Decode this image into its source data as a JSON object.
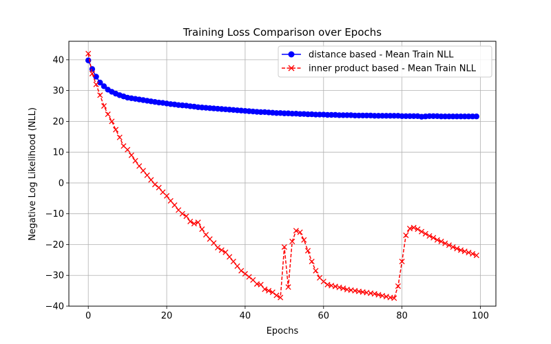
{
  "chart_data": {
    "type": "line",
    "title": "Training Loss Comparison over Epochs",
    "xlabel": "Epochs",
    "ylabel": "Negative Log Likelihood (NLL)",
    "xlim": [
      -4.95,
      103.95
    ],
    "ylim": [
      -40,
      46
    ],
    "xticks": [
      0,
      20,
      40,
      60,
      80,
      100
    ],
    "xtick_labels": [
      "0",
      "20",
      "40",
      "60",
      "80",
      "100"
    ],
    "yticks": [
      -40,
      -30,
      -20,
      -10,
      0,
      10,
      20,
      30,
      40
    ],
    "ytick_labels": [
      "−40",
      "−30",
      "−20",
      "−10",
      "0",
      "10",
      "20",
      "30",
      "40"
    ],
    "grid": true,
    "legend_position": "upper-right",
    "series": [
      {
        "name": "distance based - Mean Train NLL",
        "color": "#0000ff",
        "marker": "circle",
        "line_style": "solid",
        "x": [
          0,
          1,
          2,
          3,
          4,
          5,
          6,
          7,
          8,
          9,
          10,
          11,
          12,
          13,
          14,
          15,
          16,
          17,
          18,
          19,
          20,
          21,
          22,
          23,
          24,
          25,
          26,
          27,
          28,
          29,
          30,
          31,
          32,
          33,
          34,
          35,
          36,
          37,
          38,
          39,
          40,
          41,
          42,
          43,
          44,
          45,
          46,
          47,
          48,
          49,
          50,
          51,
          52,
          53,
          54,
          55,
          56,
          57,
          58,
          59,
          60,
          61,
          62,
          63,
          64,
          65,
          66,
          67,
          68,
          69,
          70,
          71,
          72,
          73,
          74,
          75,
          76,
          77,
          78,
          79,
          80,
          81,
          82,
          83,
          84,
          85,
          86,
          87,
          88,
          89,
          90,
          91,
          92,
          93,
          94,
          95,
          96,
          97,
          98,
          99
        ],
        "values": [
          39.8,
          37.0,
          34.5,
          32.6,
          31.4,
          30.3,
          29.6,
          29.0,
          28.5,
          28.1,
          27.7,
          27.5,
          27.3,
          27.1,
          26.9,
          26.7,
          26.5,
          26.3,
          26.1,
          26.0,
          25.8,
          25.6,
          25.5,
          25.3,
          25.2,
          25.1,
          24.9,
          24.8,
          24.6,
          24.5,
          24.4,
          24.3,
          24.2,
          24.1,
          24.0,
          23.9,
          23.8,
          23.7,
          23.6,
          23.5,
          23.4,
          23.3,
          23.2,
          23.1,
          23.0,
          23.0,
          22.9,
          22.8,
          22.7,
          22.7,
          22.6,
          22.6,
          22.5,
          22.5,
          22.4,
          22.4,
          22.3,
          22.3,
          22.2,
          22.2,
          22.2,
          22.1,
          22.1,
          22.1,
          22.0,
          22.0,
          22.0,
          22.0,
          21.9,
          21.9,
          21.9,
          21.9,
          21.9,
          21.8,
          21.8,
          21.8,
          21.8,
          21.8,
          21.8,
          21.8,
          21.7,
          21.7,
          21.7,
          21.7,
          21.7,
          21.5,
          21.6,
          21.7,
          21.7,
          21.7,
          21.6,
          21.6,
          21.6,
          21.6,
          21.6,
          21.6,
          21.6,
          21.6,
          21.6,
          21.6
        ]
      },
      {
        "name": "inner product based - Mean Train NLL",
        "color": "#ff0000",
        "marker": "x",
        "line_style": "dashed",
        "x": [
          0,
          1,
          2,
          3,
          4,
          5,
          6,
          7,
          8,
          9,
          10,
          11,
          12,
          13,
          14,
          15,
          16,
          17,
          18,
          19,
          20,
          21,
          22,
          23,
          24,
          25,
          26,
          27,
          28,
          29,
          30,
          31,
          32,
          33,
          34,
          35,
          36,
          37,
          38,
          39,
          40,
          41,
          42,
          43,
          44,
          45,
          46,
          47,
          48,
          49,
          50,
          51,
          52,
          53,
          54,
          55,
          56,
          57,
          58,
          59,
          60,
          61,
          62,
          63,
          64,
          65,
          66,
          67,
          68,
          69,
          70,
          71,
          72,
          73,
          74,
          75,
          76,
          77,
          78,
          79,
          80,
          81,
          82,
          83,
          84,
          85,
          86,
          87,
          88,
          89,
          90,
          91,
          92,
          93,
          94,
          95,
          96,
          97,
          98,
          99
        ],
        "values": [
          42.0,
          35.5,
          32.0,
          28.5,
          25.0,
          22.3,
          20.0,
          17.3,
          14.8,
          12.0,
          10.8,
          9.0,
          7.2,
          5.5,
          4.0,
          2.5,
          1.0,
          -0.5,
          -1.5,
          -3.0,
          -4.2,
          -5.8,
          -7.2,
          -8.8,
          -10.0,
          -10.8,
          -12.5,
          -13.2,
          -12.8,
          -15.0,
          -16.8,
          -18.2,
          -19.5,
          -21.0,
          -21.8,
          -22.5,
          -24.0,
          -25.5,
          -27.0,
          -28.5,
          -29.5,
          -30.5,
          -31.5,
          -32.8,
          -33.0,
          -34.5,
          -35.0,
          -35.5,
          -36.5,
          -37.2,
          -20.8,
          -33.8,
          -19.0,
          -15.5,
          -16.0,
          -18.5,
          -22.0,
          -25.5,
          -28.5,
          -30.8,
          -32.0,
          -33.0,
          -33.3,
          -33.6,
          -33.9,
          -34.2,
          -34.6,
          -34.8,
          -35.0,
          -35.2,
          -35.4,
          -35.6,
          -35.8,
          -36.0,
          -36.3,
          -36.6,
          -36.9,
          -37.2,
          -37.4,
          -33.5,
          -25.5,
          -17.0,
          -14.8,
          -14.5,
          -15.0,
          -15.8,
          -16.5,
          -17.2,
          -17.8,
          -18.5,
          -19.0,
          -19.6,
          -20.2,
          -20.8,
          -21.3,
          -21.8,
          -22.2,
          -22.6,
          -23.0,
          -23.5
        ]
      }
    ]
  }
}
